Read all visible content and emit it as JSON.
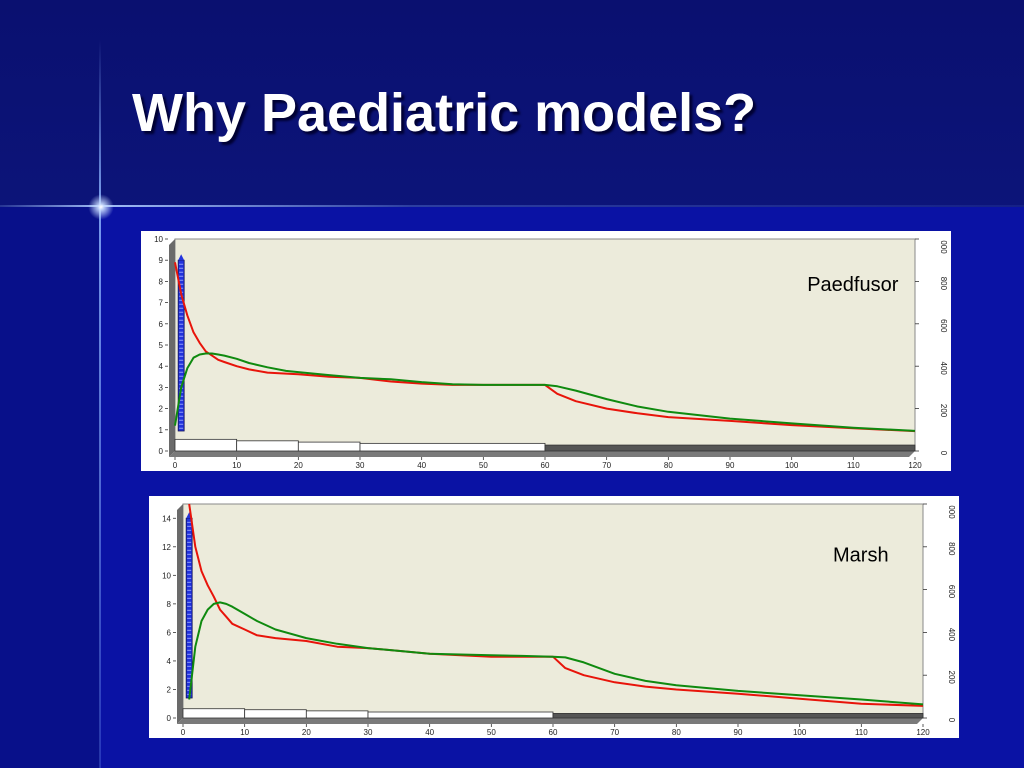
{
  "slide": {
    "title": "Why Paediatric models?"
  },
  "colors": {
    "plot_bg": "#ecebdb",
    "red_curve": "#e8140a",
    "green_curve": "#0f8a0f",
    "bolus_bar": "#2233dd"
  },
  "chart_data": [
    {
      "type": "line",
      "label": "Paedfusor",
      "xlim": [
        0,
        120
      ],
      "xticks": [
        0,
        10,
        20,
        30,
        40,
        50,
        60,
        70,
        80,
        90,
        100,
        110,
        120
      ],
      "ylim": [
        0,
        10
      ],
      "yticks": [
        0,
        1,
        2,
        3,
        4,
        5,
        6,
        7,
        8,
        9,
        10
      ],
      "y2ticks": [
        0,
        200,
        400,
        600,
        800,
        1000
      ],
      "y2_top_label": "000",
      "grid": false,
      "series": [
        {
          "x": [
            0,
            1,
            2,
            3,
            4,
            5,
            6,
            7,
            8,
            10,
            12,
            15,
            18,
            20,
            25,
            30,
            35,
            40,
            45,
            50,
            55,
            60,
            62,
            65,
            70,
            75,
            80,
            90,
            100,
            110,
            120
          ],
          "y": [
            8.9,
            7.4,
            6.4,
            5.6,
            5.1,
            4.7,
            4.5,
            4.3,
            4.2,
            4.0,
            3.85,
            3.7,
            3.65,
            3.62,
            3.5,
            3.45,
            3.28,
            3.18,
            3.12,
            3.12,
            3.12,
            3.12,
            2.7,
            2.35,
            2.0,
            1.78,
            1.6,
            1.42,
            1.22,
            1.07,
            0.94
          ]
        },
        {
          "x": [
            0,
            1,
            2,
            3,
            4,
            5,
            6,
            7,
            8,
            10,
            12,
            15,
            18,
            20,
            25,
            30,
            35,
            40,
            45,
            50,
            55,
            60,
            62,
            65,
            70,
            75,
            80,
            90,
            100,
            110,
            120
          ],
          "y": [
            1.2,
            3.0,
            3.9,
            4.4,
            4.55,
            4.6,
            4.6,
            4.55,
            4.5,
            4.35,
            4.15,
            3.95,
            3.78,
            3.72,
            3.58,
            3.45,
            3.38,
            3.25,
            3.15,
            3.12,
            3.12,
            3.12,
            3.05,
            2.85,
            2.45,
            2.1,
            1.85,
            1.53,
            1.3,
            1.1,
            0.95
          ]
        }
      ],
      "bolus": {
        "x": 1,
        "y": 9
      },
      "infusion_steps": [
        {
          "x_start": 0,
          "x_end": 10,
          "level": 0.55
        },
        {
          "x_start": 10,
          "x_end": 20,
          "level": 0.48
        },
        {
          "x_start": 20,
          "x_end": 30,
          "level": 0.42
        },
        {
          "x_start": 30,
          "x_end": 60,
          "level": 0.36
        },
        {
          "x_start": 60,
          "x_end": 120,
          "level": 0.28
        }
      ]
    },
    {
      "type": "line",
      "label": "Marsh",
      "xlim": [
        0,
        120
      ],
      "xticks": [
        0,
        10,
        20,
        30,
        40,
        50,
        60,
        70,
        80,
        90,
        100,
        110,
        120
      ],
      "ylim": [
        0,
        15
      ],
      "yticks": [
        0,
        2,
        4,
        6,
        8,
        10,
        12,
        14
      ],
      "y2ticks": [
        0,
        200,
        400,
        600,
        800,
        1000
      ],
      "y2_top_label": "000",
      "grid": false,
      "series": [
        {
          "x": [
            1,
            2,
            3,
            4,
            5,
            6,
            7,
            8,
            10,
            12,
            15,
            20,
            25,
            30,
            35,
            40,
            45,
            50,
            55,
            60,
            62,
            65,
            70,
            75,
            80,
            90,
            100,
            110,
            120
          ],
          "y": [
            15,
            12,
            10.3,
            9.3,
            8.5,
            7.6,
            7.1,
            6.6,
            6.2,
            5.8,
            5.6,
            5.4,
            5.0,
            4.9,
            4.7,
            4.5,
            4.4,
            4.3,
            4.3,
            4.3,
            3.5,
            3.0,
            2.5,
            2.2,
            2.0,
            1.7,
            1.35,
            1.0,
            0.85
          ]
        },
        {
          "x": [
            1,
            2,
            3,
            4,
            5,
            6,
            7,
            8,
            10,
            12,
            15,
            20,
            25,
            30,
            35,
            40,
            45,
            50,
            55,
            60,
            62,
            65,
            70,
            75,
            80,
            90,
            100,
            110,
            120
          ],
          "y": [
            1.3,
            5.0,
            6.8,
            7.6,
            8.0,
            8.1,
            8.0,
            7.8,
            7.3,
            6.8,
            6.2,
            5.6,
            5.2,
            4.9,
            4.7,
            4.5,
            4.45,
            4.4,
            4.35,
            4.3,
            4.25,
            3.9,
            3.1,
            2.6,
            2.3,
            1.9,
            1.6,
            1.3,
            0.95
          ]
        }
      ],
      "bolus": {
        "x": 1,
        "y": 14
      },
      "infusion_steps": [
        {
          "x_start": 0,
          "x_end": 10,
          "level": 0.65
        },
        {
          "x_start": 10,
          "x_end": 20,
          "level": 0.58
        },
        {
          "x_start": 20,
          "x_end": 30,
          "level": 0.5
        },
        {
          "x_start": 30,
          "x_end": 60,
          "level": 0.42
        },
        {
          "x_start": 60,
          "x_end": 120,
          "level": 0.32
        }
      ]
    }
  ]
}
